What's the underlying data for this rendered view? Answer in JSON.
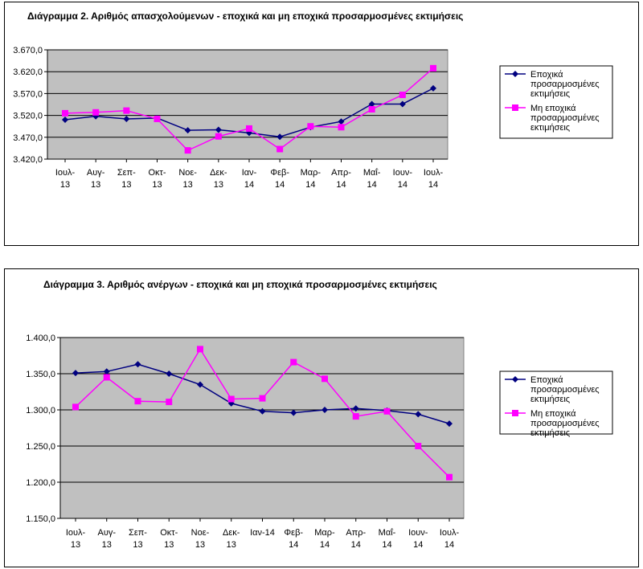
{
  "colors": {
    "seasonal": "#000080",
    "nonseasonal": "#ff00ff",
    "plot_bg": "#c0c0c0",
    "grid": "#000000"
  },
  "chart_data": [
    {
      "type": "line",
      "title": "Διάγραμμα 2. Αριθμός απασχολούμενων - εποχικά και μη εποχικά προσαρμοσμένες εκτιμήσεις",
      "categories": [
        [
          "Ιουλ-",
          "13"
        ],
        [
          "Αυγ-",
          "13"
        ],
        [
          "Σεπ-",
          "13"
        ],
        [
          "Οκτ-",
          "13"
        ],
        [
          "Νοε-",
          "13"
        ],
        [
          "Δεκ-",
          "13"
        ],
        [
          "Ιαν-",
          "14"
        ],
        [
          "Φεβ-",
          "14"
        ],
        [
          "Μαρ-",
          "14"
        ],
        [
          "Απρ-",
          "14"
        ],
        [
          "Μαΐ-",
          "14"
        ],
        [
          "Ιουν-",
          "14"
        ],
        [
          "Ιουλ-",
          "14"
        ]
      ],
      "ylim": [
        3420,
        3670
      ],
      "yticks": [
        "3.420,0",
        "3.470,0",
        "3.520,0",
        "3.570,0",
        "3.620,0",
        "3.670,0"
      ],
      "ytick_values": [
        3420,
        3470,
        3520,
        3570,
        3620,
        3670
      ],
      "grid": true,
      "legend_position": "right",
      "series": [
        {
          "name": [
            "Εποχικά",
            "προσαρμοσμένες",
            "εκτιμήσεις"
          ],
          "marker": "diamond",
          "values": [
            3510,
            3518,
            3512,
            3514,
            3486,
            3487,
            3480,
            3471,
            3493,
            3506,
            3546,
            3546,
            3582
          ]
        },
        {
          "name": [
            "Μη εποχικά",
            "προσαρμοσμένες",
            "εκτιμήσεις"
          ],
          "marker": "square",
          "values": [
            3525,
            3527,
            3531,
            3512,
            3440,
            3472,
            3490,
            3443,
            3495,
            3493,
            3534,
            3567,
            3628
          ]
        }
      ]
    },
    {
      "type": "line",
      "title": "Διάγραμμα 3. Αριθμός ανέργων - εποχικά και μη εποχικά προσαρμοσμένες εκτιμήσεις",
      "categories": [
        [
          "Ιουλ-",
          "13"
        ],
        [
          "Αυγ-",
          "13"
        ],
        [
          "Σεπ-",
          "13"
        ],
        [
          "Οκτ-",
          "13"
        ],
        [
          "Νοε-",
          "13"
        ],
        [
          "Δεκ-",
          "13"
        ],
        [
          "Ιαν-14"
        ],
        [
          "Φεβ-",
          "14"
        ],
        [
          "Μαρ-",
          "14"
        ],
        [
          "Απρ-",
          "14"
        ],
        [
          "Μαΐ-",
          "14"
        ],
        [
          "Ιουν-",
          "14"
        ],
        [
          "Ιουλ-",
          "14"
        ]
      ],
      "ylim": [
        1150,
        1400
      ],
      "yticks": [
        "1.150,0",
        "1.200,0",
        "1.250,0",
        "1.300,0",
        "1.350,0",
        "1.400,0"
      ],
      "ytick_values": [
        1150,
        1200,
        1250,
        1300,
        1350,
        1400
      ],
      "grid": true,
      "legend_position": "right",
      "series": [
        {
          "name": [
            "Εποχικά",
            "προσαρμοσμένες",
            "εκτιμήσεις"
          ],
          "marker": "diamond",
          "values": [
            1351,
            1353,
            1363,
            1350,
            1335,
            1309,
            1298,
            1296,
            1300,
            1302,
            1299,
            1294,
            1281
          ]
        },
        {
          "name": [
            "Μη εποχικά",
            "προσαρμοσμένες",
            "εκτιμήσεις"
          ],
          "marker": "square",
          "values": [
            1304,
            1345,
            1312,
            1311,
            1384,
            1315,
            1316,
            1366,
            1343,
            1291,
            1298,
            1250,
            1207
          ]
        }
      ]
    }
  ]
}
